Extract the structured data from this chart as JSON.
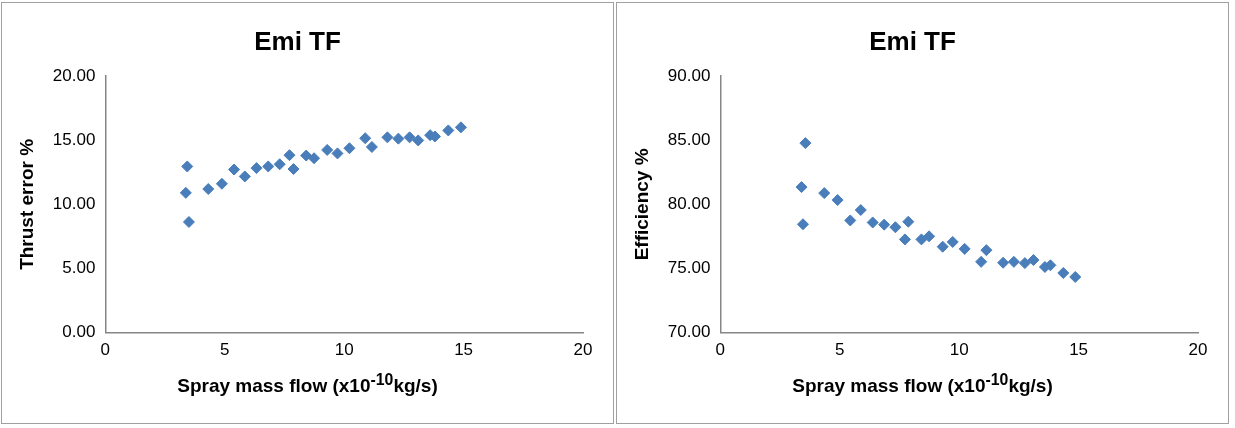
{
  "chart_data": [
    {
      "type": "scatter",
      "title": "Emi TF",
      "xlabel": "Spray mass flow (x10$^{-10}$kg/s)",
      "ylabel": "Thrust error %",
      "marker": "diamond",
      "xlim": [
        0,
        20
      ],
      "xticks": [
        0,
        5,
        10,
        15,
        20
      ],
      "ylim": [
        0,
        20
      ],
      "yticks": [
        {
          "value": 0,
          "label": "0.00"
        },
        {
          "value": 5,
          "label": "5.00"
        },
        {
          "value": 10,
          "label": "10.00"
        },
        {
          "value": 15,
          "label": "15.00"
        },
        {
          "value": 20,
          "label": "20.00"
        }
      ],
      "series": [
        {
          "color": "#4a7ebb",
          "x": [
            3.43,
            3.37,
            3.5,
            4.31,
            4.88,
            5.39,
            5.84,
            6.33,
            6.82,
            7.3,
            7.71,
            7.88,
            8.41,
            8.74,
            9.29,
            9.72,
            10.22,
            10.88,
            11.16,
            11.81,
            12.27,
            12.74,
            13.1,
            13.6,
            13.8,
            14.36,
            14.89
          ],
          "values": [
            12.96,
            10.9,
            8.63,
            11.2,
            11.61,
            12.72,
            12.18,
            12.83,
            12.96,
            13.13,
            13.84,
            12.76,
            13.81,
            13.6,
            14.25,
            13.98,
            14.38,
            15.16,
            14.48,
            15.23,
            15.13,
            15.23,
            14.99,
            15.4,
            15.3,
            15.77,
            16.01
          ]
        }
      ]
    },
    {
      "type": "scatter",
      "title": "Emi TF",
      "xlabel": "Spray mass flow (x10$^{-10}$kg/s)",
      "ylabel": "Efficiency %",
      "marker": "diamond",
      "xlim": [
        0,
        20
      ],
      "xticks": [
        0,
        5,
        10,
        15,
        20
      ],
      "ylim": [
        70,
        90
      ],
      "yticks": [
        {
          "value": 70,
          "label": "70.00"
        },
        {
          "value": 75,
          "label": "75.00"
        },
        {
          "value": 80,
          "label": "80.00"
        },
        {
          "value": 85,
          "label": "85.00"
        },
        {
          "value": 90,
          "label": "90.00"
        }
      ],
      "series": [
        {
          "color": "#4a7ebb",
          "x": [
            3.56,
            3.4,
            3.46,
            4.35,
            4.91,
            5.44,
            5.88,
            6.38,
            6.86,
            7.33,
            7.73,
            7.87,
            8.42,
            8.74,
            9.31,
            9.73,
            10.23,
            10.92,
            11.14,
            11.84,
            12.29,
            12.75,
            13.11,
            13.59,
            13.82,
            14.36,
            14.86
          ],
          "values": [
            84.78,
            81.35,
            78.45,
            80.88,
            80.34,
            78.75,
            79.56,
            78.59,
            78.42,
            78.22,
            77.27,
            78.65,
            77.27,
            77.51,
            76.7,
            77.07,
            76.53,
            75.52,
            76.43,
            75.45,
            75.52,
            75.42,
            75.66,
            75.12,
            75.25,
            74.65,
            74.34
          ]
        }
      ]
    }
  ]
}
